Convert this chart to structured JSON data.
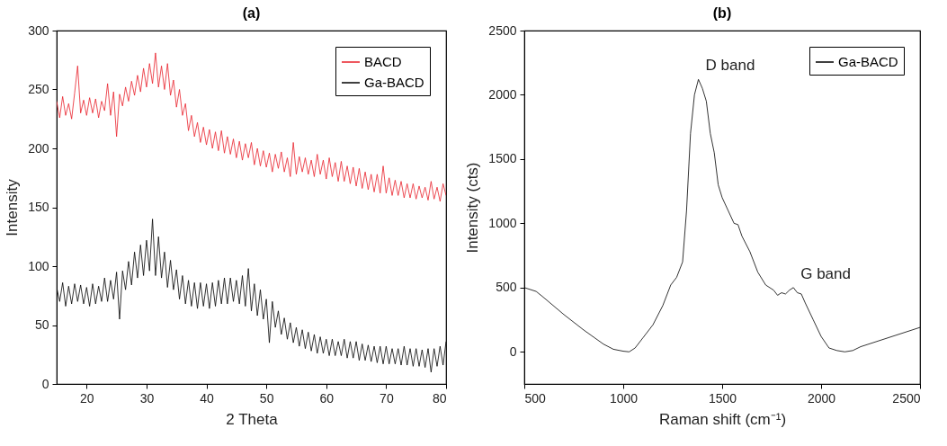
{
  "chart_data": [
    {
      "type": "line",
      "title": "(a)",
      "xlabel": "2 Theta",
      "ylabel": "Intensity",
      "xlim": [
        15,
        80
      ],
      "xticks": [
        20,
        30,
        40,
        50,
        60,
        70,
        80
      ],
      "ylim": [
        0,
        300
      ],
      "yticks": [
        0,
        50,
        100,
        150,
        200,
        250,
        300
      ],
      "grid": false,
      "legend": "top right",
      "x": [
        15,
        15.5,
        16,
        16.5,
        17,
        17.5,
        18,
        18.5,
        19,
        19.5,
        20,
        20.5,
        21,
        21.5,
        22,
        22.5,
        23,
        23.5,
        24,
        24.5,
        25,
        25.5,
        26,
        26.5,
        27,
        27.5,
        28,
        28.5,
        29,
        29.5,
        30,
        30.5,
        31,
        31.5,
        32,
        32.5,
        33,
        33.5,
        34,
        34.5,
        35,
        35.5,
        36,
        36.5,
        37,
        37.5,
        38,
        38.5,
        39,
        39.5,
        40,
        40.5,
        41,
        41.5,
        42,
        42.5,
        43,
        43.5,
        44,
        44.5,
        45,
        45.5,
        46,
        46.5,
        47,
        47.5,
        48,
        48.5,
        49,
        49.5,
        50,
        50.5,
        51,
        51.5,
        52,
        52.5,
        53,
        53.5,
        54,
        54.5,
        55,
        55.5,
        56,
        56.5,
        57,
        57.5,
        58,
        58.5,
        59,
        59.5,
        60,
        60.5,
        61,
        61.5,
        62,
        62.5,
        63,
        63.5,
        64,
        64.5,
        65,
        65.5,
        66,
        66.5,
        67,
        67.5,
        68,
        68.5,
        69,
        69.5,
        70,
        70.5,
        71,
        71.5,
        72,
        72.5,
        73,
        73.5,
        74,
        74.5,
        75,
        75.5,
        76,
        76.5,
        77,
        77.5,
        78,
        78.5,
        79,
        79.5,
        80
      ],
      "series": [
        {
          "name": "BACD",
          "color": "#e8202a",
          "values": [
            240,
            226,
            244,
            228,
            238,
            225,
            247,
            270,
            230,
            241,
            228,
            243,
            230,
            242,
            226,
            240,
            232,
            255,
            228,
            248,
            210,
            246,
            236,
            252,
            240,
            257,
            245,
            262,
            248,
            268,
            252,
            272,
            255,
            281,
            252,
            270,
            250,
            272,
            245,
            258,
            235,
            250,
            228,
            238,
            215,
            228,
            210,
            222,
            205,
            218,
            203,
            216,
            200,
            214,
            198,
            215,
            196,
            210,
            195,
            208,
            192,
            206,
            190,
            204,
            192,
            205,
            186,
            200,
            185,
            198,
            184,
            196,
            180,
            195,
            183,
            197,
            180,
            192,
            176,
            205,
            178,
            193,
            180,
            192,
            178,
            190,
            176,
            195,
            178,
            190,
            174,
            192,
            176,
            188,
            172,
            189,
            172,
            185,
            170,
            184,
            168,
            183,
            166,
            180,
            165,
            178,
            163,
            178,
            162,
            185,
            162,
            175,
            160,
            173,
            160,
            172,
            158,
            170,
            158,
            170,
            157,
            168,
            158,
            167,
            156,
            172,
            157,
            167,
            155,
            170,
            160
          ]
        },
        {
          "name": "Ga-BACD",
          "color": "#000000",
          "values": [
            82,
            70,
            86,
            66,
            83,
            68,
            85,
            70,
            84,
            68,
            82,
            66,
            85,
            68,
            83,
            70,
            90,
            70,
            88,
            72,
            95,
            55,
            96,
            80,
            104,
            84,
            112,
            90,
            118,
            92,
            122,
            96,
            140,
            92,
            125,
            90,
            112,
            82,
            105,
            80,
            97,
            72,
            92,
            68,
            88,
            66,
            86,
            64,
            86,
            66,
            85,
            64,
            86,
            66,
            88,
            68,
            90,
            68,
            90,
            70,
            88,
            68,
            92,
            66,
            98,
            62,
            85,
            58,
            80,
            55,
            72,
            35,
            70,
            48,
            62,
            42,
            56,
            38,
            52,
            35,
            48,
            32,
            46,
            30,
            44,
            28,
            42,
            26,
            40,
            26,
            38,
            24,
            38,
            24,
            36,
            24,
            38,
            22,
            36,
            22,
            36,
            20,
            34,
            20,
            33,
            19,
            32,
            18,
            32,
            17,
            32,
            17,
            30,
            17,
            30,
            16,
            32,
            16,
            30,
            15,
            30,
            15,
            29,
            14,
            30,
            10,
            30,
            15,
            32,
            16,
            36
          ]
        }
      ]
    },
    {
      "type": "line",
      "title": "(b)",
      "xlabel": "Raman shift (cm⁻¹)",
      "ylabel": "Intensity (cts)",
      "xlim": [
        500,
        2500
      ],
      "xticks": [
        500,
        1000,
        1500,
        2000,
        2500
      ],
      "ylim": [
        -250,
        2500
      ],
      "yticks": [
        0,
        500,
        1000,
        1500,
        2000,
        2500
      ],
      "grid": false,
      "legend": "top right",
      "annotations": [
        {
          "text": "D band",
          "x": 1380,
          "y": 2120
        },
        {
          "text": "G band",
          "x": 1860,
          "y": 500
        }
      ],
      "x": [
        500,
        560,
        600,
        700,
        800,
        900,
        950,
        1000,
        1030,
        1060,
        1100,
        1150,
        1200,
        1240,
        1270,
        1300,
        1320,
        1340,
        1360,
        1380,
        1400,
        1420,
        1440,
        1460,
        1480,
        1500,
        1530,
        1560,
        1580,
        1600,
        1640,
        1680,
        1720,
        1760,
        1780,
        1800,
        1820,
        1840,
        1860,
        1880,
        1900,
        1920,
        1960,
        2000,
        2040,
        2080,
        2120,
        2160,
        2200,
        2300,
        2400,
        2500
      ],
      "series": [
        {
          "name": "Ga-BACD",
          "color": "#000000",
          "values": [
            500,
            470,
            420,
            290,
            170,
            60,
            20,
            5,
            0,
            30,
            110,
            210,
            360,
            520,
            580,
            700,
            1100,
            1700,
            2000,
            2120,
            2050,
            1950,
            1700,
            1550,
            1300,
            1200,
            1100,
            1000,
            990,
            900,
            780,
            620,
            520,
            480,
            440,
            460,
            450,
            480,
            500,
            460,
            450,
            380,
            250,
            120,
            30,
            10,
            0,
            10,
            40,
            90,
            140,
            190
          ]
        }
      ]
    }
  ]
}
